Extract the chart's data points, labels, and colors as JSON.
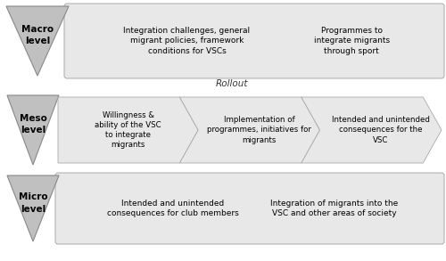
{
  "bg_color": "#ffffff",
  "level_fill": "#c0c0c0",
  "level_stroke": "#888888",
  "arrow_fill": "#e8e8e8",
  "arrow_stroke": "#aaaaaa",
  "rows": [
    {
      "label": "Macro\nlevel",
      "type": "wide",
      "boxes": [
        {
          "text": "Integration challenges, general\nmigrant policies, framework\nconditions for VSCs"
        },
        {
          "text": "Programmes to\nintegrate migrants\nthrough sport"
        }
      ]
    },
    {
      "label": "Meso\nlevel",
      "type": "chevron",
      "boxes": [
        {
          "text": "Willingness &\nability of the VSC\nto integrate\nmigrants"
        },
        {
          "text": "Implementation of\nprogrammes, initiatives for\nmigrants"
        },
        {
          "text": "Intended and unintended\nconsequences for the\nVSC"
        }
      ]
    },
    {
      "label": "Micro\nlevel",
      "type": "wide",
      "boxes": [
        {
          "text": "Intended and unintended\nconsequences for club members"
        },
        {
          "text": "Integration of migrants into the\nVSC and other areas of society"
        }
      ]
    }
  ],
  "rollout_text": "Rollout",
  "fig_w": 5.0,
  "fig_h": 2.93,
  "dpi": 100
}
